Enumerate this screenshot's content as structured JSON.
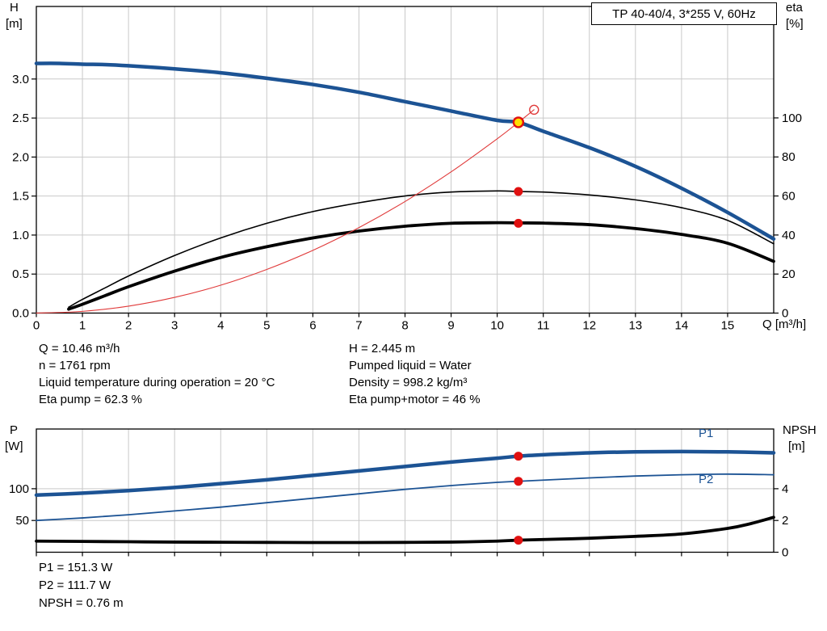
{
  "title_box": {
    "label": "TP 40-40/4, 3*255 V, 60Hz"
  },
  "axis_labels": {
    "top_left_1": "H",
    "top_left_2": "[m]",
    "top_right_1": "eta",
    "top_right_2": "[%]",
    "x": "Q [m³/h]",
    "bottom_left_1": "P",
    "bottom_left_2": "[W]",
    "bottom_right_1": "NPSH",
    "bottom_right_2": "[m]",
    "p1": "P1",
    "p2": "P2"
  },
  "info_panel": {
    "left": [
      "Q = 10.46 m³/h",
      "n = 1761 rpm",
      "Liquid temperature during operation = 20 °C",
      "Eta pump = 62.3 %"
    ],
    "right": [
      "H = 2.445 m",
      "Pumped liquid = Water",
      "Density = 998.2 kg/m³",
      "Eta pump+motor = 46 %"
    ]
  },
  "result_panel": [
    "P1 = 151.3 W",
    "P2 = 111.7 W",
    "NPSH = 0.76 m"
  ],
  "colors": {
    "curve_blue": "#1c5394",
    "curve_black": "#000000",
    "system_red": "#e03a3a",
    "marker_red": "#e01010",
    "marker_yellow": "#ffdf00",
    "grid": "#c9c9c9",
    "axis": "#000000",
    "label_blue": "#1c5394"
  },
  "chart_data": [
    {
      "type": "line",
      "name": "qh-efficiency-chart",
      "title": "TP 40-40/4, 3*255 V, 60Hz",
      "x_axis": {
        "label": "Q [m³/h]",
        "min": 0,
        "max": 16,
        "ticks": [
          0,
          1,
          2,
          3,
          4,
          5,
          6,
          7,
          8,
          9,
          10,
          11,
          12,
          13,
          14,
          15
        ],
        "tick_labels": [
          "0",
          "1",
          "2",
          "3",
          "4",
          "5",
          "6",
          "7",
          "8",
          "9",
          "10",
          "11",
          "12",
          "13",
          "14",
          "15"
        ]
      },
      "y_left": {
        "label": "H [m]",
        "min": 0,
        "max": 3.93,
        "ticks": [
          0,
          0.5,
          1,
          1.5,
          2,
          2.5,
          3
        ],
        "tick_labels": [
          "0.0",
          "0.5",
          "1.0",
          "1.5",
          "2.0",
          "2.5",
          "3.0"
        ]
      },
      "y_right": {
        "label": "eta [%]",
        "min": 0,
        "max": 157.1,
        "ticks": [
          0,
          20,
          40,
          60,
          80,
          100
        ],
        "tick_labels": [
          "0",
          "20",
          "40",
          "60",
          "80",
          "100"
        ]
      },
      "grid": true,
      "series": [
        {
          "name": "head-curve",
          "axis": "left",
          "color": "curve_blue",
          "width": 4.5,
          "points": [
            [
              0,
              3.2
            ],
            [
              0.5,
              3.2
            ],
            [
              1,
              3.19
            ],
            [
              1.5,
              3.185
            ],
            [
              2,
              3.17
            ],
            [
              3,
              3.13
            ],
            [
              4,
              3.08
            ],
            [
              5,
              3.01
            ],
            [
              6,
              2.93
            ],
            [
              7,
              2.83
            ],
            [
              8,
              2.71
            ],
            [
              9,
              2.59
            ],
            [
              10,
              2.47
            ],
            [
              10.46,
              2.445
            ],
            [
              11,
              2.33
            ],
            [
              12,
              2.12
            ],
            [
              13,
              1.88
            ],
            [
              14,
              1.6
            ],
            [
              15,
              1.29
            ],
            [
              16,
              0.95
            ]
          ]
        },
        {
          "name": "eta-pump-curve",
          "axis": "right",
          "color": "curve_black",
          "width": 1.6,
          "points": [
            [
              0.7,
              3
            ],
            [
              1,
              7
            ],
            [
              1.5,
              13
            ],
            [
              2,
              19
            ],
            [
              3,
              29.5
            ],
            [
              4,
              38.5
            ],
            [
              5,
              46
            ],
            [
              6,
              52
            ],
            [
              7,
              56.5
            ],
            [
              8,
              60
            ],
            [
              9,
              62
            ],
            [
              10,
              62.6
            ],
            [
              10.46,
              62.3
            ],
            [
              11,
              62
            ],
            [
              12,
              60.5
            ],
            [
              13,
              58
            ],
            [
              14,
              54
            ],
            [
              15,
              47.5
            ],
            [
              16,
              35.5
            ]
          ]
        },
        {
          "name": "eta-pump-motor-curve",
          "axis": "right",
          "color": "curve_black",
          "width": 3.8,
          "points": [
            [
              0.7,
              2
            ],
            [
              1,
              4.5
            ],
            [
              1.5,
              9
            ],
            [
              2,
              13.5
            ],
            [
              3,
              21.5
            ],
            [
              4,
              28.5
            ],
            [
              5,
              34
            ],
            [
              6,
              38.5
            ],
            [
              7,
              42
            ],
            [
              8,
              44.5
            ],
            [
              9,
              46
            ],
            [
              10,
              46.3
            ],
            [
              10.46,
              46.2
            ],
            [
              11,
              46.1
            ],
            [
              12,
              45.3
            ],
            [
              13,
              43.3
            ],
            [
              14,
              40.3
            ],
            [
              15,
              35.8
            ],
            [
              16,
              26.5
            ]
          ]
        },
        {
          "name": "system-curve",
          "axis": "left",
          "color": "system_red",
          "width": 1.1,
          "points": [
            [
              0,
              0
            ],
            [
              1,
              0.022
            ],
            [
              2,
              0.089
            ],
            [
              3,
              0.201
            ],
            [
              4,
              0.357
            ],
            [
              5,
              0.559
            ],
            [
              6,
              0.804
            ],
            [
              7,
              1.095
            ],
            [
              8,
              1.43
            ],
            [
              9,
              1.81
            ],
            [
              10,
              2.234
            ],
            [
              10.46,
              2.445
            ],
            [
              10.8,
              2.606
            ]
          ]
        }
      ],
      "markers": [
        {
          "name": "duty-point",
          "axis": "left",
          "x": 10.46,
          "y": 2.445,
          "style": "duty"
        },
        {
          "name": "eta-pump-point",
          "axis": "right",
          "x": 10.46,
          "y": 62.3,
          "style": "red"
        },
        {
          "name": "eta-pump-motor-point",
          "axis": "right",
          "x": 10.46,
          "y": 46,
          "style": "red"
        },
        {
          "name": "system-curve-end-circle",
          "axis": "left",
          "x": 10.8,
          "y": 2.606,
          "style": "open"
        }
      ]
    },
    {
      "type": "line",
      "name": "power-npsh-chart",
      "title": "",
      "x_axis": {
        "label": "",
        "min": 0,
        "max": 16,
        "ticks": [
          0,
          1,
          2,
          3,
          4,
          5,
          6,
          7,
          8,
          9,
          10,
          11,
          12,
          13,
          14,
          15
        ],
        "tick_labels": []
      },
      "y_left": {
        "label": "P [W]",
        "min": 0,
        "max": 194,
        "ticks": [
          50,
          100
        ],
        "tick_labels": [
          "50",
          "100"
        ]
      },
      "y_right": {
        "label": "NPSH [m]",
        "min": 0,
        "max": 7.76,
        "ticks": [
          0,
          2,
          4
        ],
        "tick_labels": [
          "0",
          "2",
          "4"
        ]
      },
      "grid": true,
      "series": [
        {
          "name": "p1-curve",
          "axis": "left",
          "color": "curve_blue",
          "width": 4.5,
          "points": [
            [
              0,
              90
            ],
            [
              1,
              93
            ],
            [
              2,
              97
            ],
            [
              3,
              102
            ],
            [
              4,
              108
            ],
            [
              5,
              114
            ],
            [
              6,
              121
            ],
            [
              7,
              128
            ],
            [
              8,
              135
            ],
            [
              9,
              142
            ],
            [
              10,
              148
            ],
            [
              10.46,
              151.3
            ],
            [
              11,
              153.5
            ],
            [
              12,
              156.5
            ],
            [
              13,
              158
            ],
            [
              14,
              158.5
            ],
            [
              15,
              158
            ],
            [
              16,
              156.5
            ]
          ]
        },
        {
          "name": "p2-curve",
          "axis": "left",
          "color": "curve_blue",
          "width": 1.8,
          "points": [
            [
              0,
              50
            ],
            [
              1,
              54
            ],
            [
              2,
              59
            ],
            [
              3,
              65
            ],
            [
              4,
              71
            ],
            [
              5,
              78
            ],
            [
              6,
              85
            ],
            [
              7,
              92
            ],
            [
              8,
              99
            ],
            [
              9,
              105
            ],
            [
              10,
              110
            ],
            [
              10.46,
              111.7
            ],
            [
              11,
              113.5
            ],
            [
              12,
              117
            ],
            [
              13,
              120
            ],
            [
              14,
              122
            ],
            [
              15,
              123
            ],
            [
              16,
              122
            ]
          ]
        },
        {
          "name": "npsh-curve",
          "axis": "right",
          "color": "curve_black",
          "width": 3.8,
          "points": [
            [
              0,
              0.7
            ],
            [
              1,
              0.68
            ],
            [
              2,
              0.66
            ],
            [
              3,
              0.64
            ],
            [
              4,
              0.63
            ],
            [
              5,
              0.62
            ],
            [
              6,
              0.61
            ],
            [
              7,
              0.61
            ],
            [
              8,
              0.62
            ],
            [
              9,
              0.64
            ],
            [
              10,
              0.7
            ],
            [
              10.46,
              0.76
            ],
            [
              11,
              0.8
            ],
            [
              12,
              0.88
            ],
            [
              13,
              1.0
            ],
            [
              14,
              1.15
            ],
            [
              15,
              1.5
            ],
            [
              15.5,
              1.8
            ],
            [
              16,
              2.2
            ]
          ]
        }
      ],
      "markers": [
        {
          "name": "p1-point",
          "axis": "left",
          "x": 10.46,
          "y": 151.3,
          "style": "red"
        },
        {
          "name": "p2-point",
          "axis": "left",
          "x": 10.46,
          "y": 111.7,
          "style": "red"
        },
        {
          "name": "npsh-point",
          "axis": "right",
          "x": 10.46,
          "y": 0.76,
          "style": "red"
        }
      ]
    }
  ]
}
